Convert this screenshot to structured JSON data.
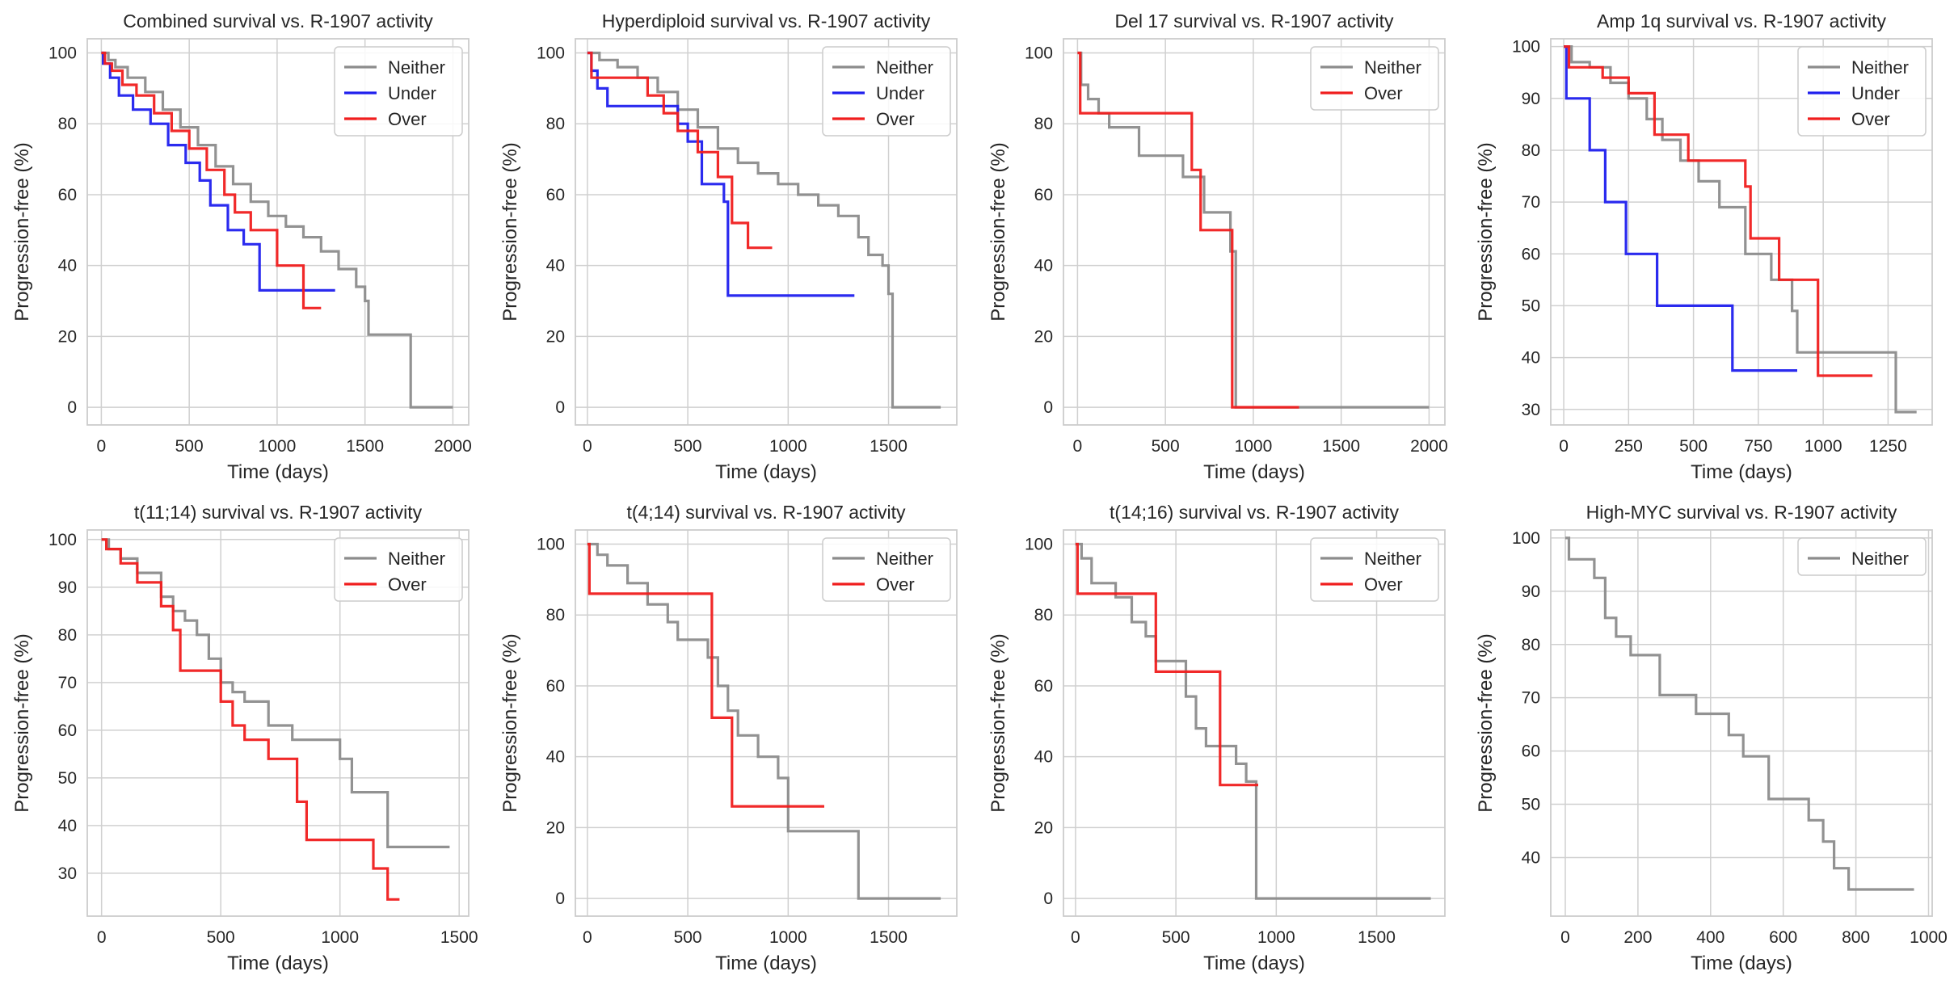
{
  "figure": {
    "xlabel": "Time (days)",
    "ylabel": "Progression-free (%)"
  },
  "colors": {
    "Neither": "#8c8c8c",
    "Under": "#2020ee",
    "Over": "#f01e1e"
  },
  "chart_data": [
    {
      "type": "line",
      "title": "Combined survival vs. R-1907 activity",
      "xlabel": "Time (days)",
      "ylabel": "Progression-free (%)",
      "xlim": [
        -80,
        2090
      ],
      "ylim": [
        -5,
        104
      ],
      "xticks": [
        0,
        500,
        1000,
        1500,
        2000
      ],
      "yticks": [
        0,
        20,
        40,
        60,
        80,
        100
      ],
      "grid": true,
      "legend": "top-right",
      "series": [
        {
          "name": "Neither",
          "x": [
            0,
            40,
            80,
            150,
            250,
            350,
            450,
            550,
            650,
            750,
            850,
            950,
            1050,
            1150,
            1250,
            1350,
            1450,
            1500,
            1520,
            1750,
            1760,
            2000
          ],
          "y": [
            100,
            98,
            96,
            93,
            89,
            84,
            79,
            74,
            68,
            63,
            58,
            54,
            51,
            48,
            44,
            39,
            34,
            30,
            20.5,
            20.5,
            0,
            0
          ]
        },
        {
          "name": "Under",
          "x": [
            0,
            10,
            50,
            100,
            180,
            280,
            380,
            480,
            560,
            620,
            720,
            810,
            900,
            1330
          ],
          "y": [
            100,
            97,
            93,
            88,
            84,
            80,
            74,
            69,
            64,
            57,
            50,
            46,
            33,
            33
          ]
        },
        {
          "name": "Over",
          "x": [
            0,
            20,
            60,
            120,
            200,
            300,
            400,
            500,
            600,
            700,
            760,
            850,
            1000,
            1150,
            1250
          ],
          "y": [
            100,
            97,
            95,
            91,
            88,
            83,
            78,
            73,
            67,
            60,
            55,
            50,
            40,
            28,
            28
          ]
        }
      ]
    },
    {
      "type": "line",
      "title": "Hyperdiploid survival vs. R-1907 activity",
      "xlabel": "Time (days)",
      "ylabel": "Progression-free (%)",
      "xlim": [
        -60,
        1840
      ],
      "ylim": [
        -5,
        104
      ],
      "xticks": [
        0,
        500,
        1000,
        1500
      ],
      "yticks": [
        0,
        20,
        40,
        60,
        80,
        100
      ],
      "grid": true,
      "legend": "top-right",
      "series": [
        {
          "name": "Neither",
          "x": [
            0,
            60,
            150,
            250,
            350,
            450,
            550,
            650,
            750,
            850,
            950,
            1050,
            1150,
            1250,
            1350,
            1400,
            1470,
            1500,
            1520,
            1760
          ],
          "y": [
            100,
            98,
            96,
            93,
            89,
            84,
            79,
            73,
            69,
            66,
            63,
            60,
            57,
            54,
            48,
            43,
            40,
            32,
            0,
            0
          ]
        },
        {
          "name": "Under",
          "x": [
            0,
            20,
            50,
            100,
            300,
            450,
            500,
            570,
            680,
            700,
            1330
          ],
          "y": [
            100,
            95,
            90,
            85,
            85,
            80,
            75,
            63,
            58,
            31.5,
            31.5
          ]
        },
        {
          "name": "Over",
          "x": [
            0,
            20,
            300,
            380,
            450,
            550,
            650,
            720,
            800,
            920
          ],
          "y": [
            100,
            93,
            88,
            83,
            78,
            72,
            65,
            52,
            45,
            45
          ]
        }
      ]
    },
    {
      "type": "line",
      "title": "Del 17 survival vs. R-1907 activity",
      "xlabel": "Time (days)",
      "ylabel": "Progression-free (%)",
      "xlim": [
        -80,
        2090
      ],
      "ylim": [
        -5,
        104
      ],
      "xticks": [
        0,
        500,
        1000,
        1500,
        2000
      ],
      "yticks": [
        0,
        20,
        40,
        60,
        80,
        100
      ],
      "grid": true,
      "legend": "top-right",
      "series": [
        {
          "name": "Neither",
          "x": [
            0,
            20,
            60,
            120,
            180,
            350,
            600,
            720,
            870,
            900,
            920,
            2000
          ],
          "y": [
            100,
            91,
            87,
            83,
            79,
            71,
            65,
            55,
            44,
            0,
            0,
            0
          ]
        },
        {
          "name": "Over",
          "x": [
            0,
            15,
            600,
            650,
            700,
            860,
            880,
            1260
          ],
          "y": [
            100,
            83,
            83,
            67,
            50,
            50,
            0,
            0
          ]
        }
      ]
    },
    {
      "type": "line",
      "title": "Amp 1q survival vs. R-1907 activity",
      "xlabel": "Time (days)",
      "ylabel": "Progression-free (%)",
      "xlim": [
        -50,
        1420
      ],
      "ylim": [
        27,
        101.5
      ],
      "xticks": [
        0,
        250,
        500,
        750,
        1000,
        1250
      ],
      "yticks": [
        30,
        40,
        50,
        60,
        70,
        80,
        90,
        100
      ],
      "grid": true,
      "legend": "top-right",
      "series": [
        {
          "name": "Neither",
          "x": [
            0,
            30,
            100,
            180,
            250,
            320,
            380,
            450,
            520,
            600,
            700,
            800,
            880,
            900,
            1250,
            1280,
            1360
          ],
          "y": [
            100,
            97,
            96,
            93,
            90,
            86,
            82,
            78,
            74,
            69,
            60,
            55,
            49,
            41,
            41,
            29.5,
            29.5
          ]
        },
        {
          "name": "Under",
          "x": [
            0,
            10,
            100,
            160,
            240,
            360,
            650,
            900
          ],
          "y": [
            100,
            90,
            80,
            70,
            60,
            50,
            37.5,
            37.5
          ]
        },
        {
          "name": "Over",
          "x": [
            0,
            20,
            150,
            250,
            350,
            480,
            700,
            720,
            830,
            980,
            1190
          ],
          "y": [
            100,
            96,
            94,
            91,
            83,
            78,
            73,
            63,
            55,
            36.5,
            36.5
          ]
        }
      ]
    },
    {
      "type": "line",
      "title": "t(11;14) survival vs. R-1907 activity",
      "xlabel": "Time (days)",
      "ylabel": "Progression-free (%)",
      "xlim": [
        -60,
        1540
      ],
      "ylim": [
        21,
        102
      ],
      "xticks": [
        0,
        500,
        1000,
        1500
      ],
      "yticks": [
        30,
        40,
        50,
        60,
        70,
        80,
        90,
        100
      ],
      "grid": true,
      "legend": "top-right",
      "series": [
        {
          "name": "Neither",
          "x": [
            0,
            30,
            80,
            150,
            250,
            300,
            350,
            400,
            450,
            500,
            550,
            600,
            700,
            800,
            1000,
            1050,
            1200,
            1460
          ],
          "y": [
            100,
            98,
            96,
            93,
            88,
            85,
            83,
            80,
            75,
            70,
            68,
            66,
            61,
            58,
            54,
            47,
            35.5,
            35.5
          ]
        },
        {
          "name": "Over",
          "x": [
            0,
            20,
            80,
            150,
            250,
            300,
            330,
            450,
            500,
            550,
            600,
            700,
            820,
            860,
            1100,
            1140,
            1200,
            1250
          ],
          "y": [
            100,
            98,
            95,
            91,
            86,
            81,
            72.5,
            72.5,
            66,
            61,
            58,
            54,
            45,
            37,
            37,
            31,
            24.5,
            24.5
          ]
        }
      ]
    },
    {
      "type": "line",
      "title": "t(4;14) survival vs. R-1907 activity",
      "xlabel": "Time (days)",
      "ylabel": "Progression-free (%)",
      "xlim": [
        -60,
        1840
      ],
      "ylim": [
        -5,
        104
      ],
      "xticks": [
        0,
        500,
        1000,
        1500
      ],
      "yticks": [
        0,
        20,
        40,
        60,
        80,
        100
      ],
      "grid": true,
      "legend": "top-right",
      "series": [
        {
          "name": "Neither",
          "x": [
            0,
            50,
            100,
            200,
            300,
            400,
            450,
            600,
            650,
            700,
            750,
            850,
            950,
            1000,
            1350,
            1760
          ],
          "y": [
            100,
            97,
            94,
            89,
            83,
            78,
            73,
            68,
            60,
            53,
            46,
            40,
            34,
            19,
            0,
            0
          ]
        },
        {
          "name": "Over",
          "x": [
            0,
            10,
            600,
            620,
            720,
            1180
          ],
          "y": [
            100,
            86,
            86,
            51,
            26,
            26
          ]
        }
      ]
    },
    {
      "type": "line",
      "title": "t(14;16) survival vs. R-1907 activity",
      "xlabel": "Time (days)",
      "ylabel": "Progression-free (%)",
      "xlim": [
        -60,
        1840
      ],
      "ylim": [
        -5,
        104
      ],
      "xticks": [
        0,
        500,
        1000,
        1500
      ],
      "yticks": [
        0,
        20,
        40,
        60,
        80,
        100
      ],
      "grid": true,
      "legend": "top-right",
      "series": [
        {
          "name": "Neither",
          "x": [
            0,
            30,
            80,
            200,
            280,
            350,
            400,
            550,
            600,
            650,
            800,
            850,
            900,
            1770
          ],
          "y": [
            100,
            96,
            89,
            85,
            78,
            74,
            67,
            57,
            48,
            43,
            38,
            33,
            0,
            0
          ]
        },
        {
          "name": "Over",
          "x": [
            0,
            10,
            380,
            400,
            720,
            910
          ],
          "y": [
            100,
            86,
            86,
            64,
            32,
            32
          ]
        }
      ]
    },
    {
      "type": "line",
      "title": "High-MYC survival vs. R-1907 activity",
      "xlabel": "Time (days)",
      "ylabel": "Progression-free (%)",
      "xlim": [
        -40,
        1010
      ],
      "ylim": [
        29,
        101.5
      ],
      "xticks": [
        0,
        200,
        400,
        600,
        800,
        1000
      ],
      "yticks": [
        40,
        50,
        60,
        70,
        80,
        90,
        100
      ],
      "grid": true,
      "legend": "top-right",
      "series": [
        {
          "name": "Neither",
          "x": [
            0,
            10,
            80,
            110,
            140,
            180,
            260,
            360,
            450,
            490,
            560,
            670,
            710,
            740,
            780,
            960
          ],
          "y": [
            100,
            96,
            92.5,
            85,
            81.5,
            78,
            70.5,
            67,
            63,
            59,
            51,
            47,
            43,
            38,
            34,
            34
          ]
        }
      ]
    }
  ]
}
